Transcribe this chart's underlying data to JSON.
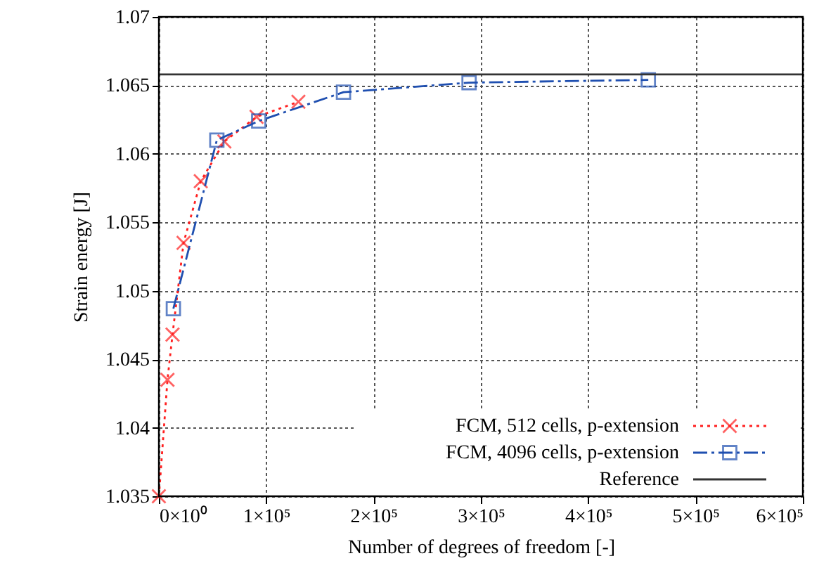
{
  "chart_data": {
    "type": "line",
    "xlabel": "Number of degrees of freedom [-]",
    "ylabel": "Strain energy [J]",
    "series": [
      {
        "name": "FCM, 512 cells, p-extension",
        "color": "#ff2020",
        "marker": "cross",
        "line_style": "dotted",
        "x": [
          0,
          8000,
          12700,
          23000,
          39000,
          61000,
          91000,
          130000
        ],
        "values": [
          1.035,
          1.0435,
          1.0468,
          1.0535,
          1.058,
          1.0609,
          1.0627,
          1.0638
        ]
      },
      {
        "name": "FCM, 4096 cells, p-extension",
        "color": "#1f4fb0",
        "marker": "square",
        "line_style": "dashed",
        "x": [
          13500,
          54000,
          93000,
          172000,
          289000,
          456000
        ],
        "values": [
          1.0487,
          1.061,
          1.0624,
          1.0645,
          1.0652,
          1.0654
        ]
      }
    ],
    "ref_lines": [
      {
        "axis": "y",
        "value": 1.0658,
        "label": "Reference",
        "color": "#333333"
      }
    ],
    "xlim": [
      0,
      600000
    ],
    "ylim": [
      1.035,
      1.07
    ],
    "xticks": [
      {
        "value": 0,
        "label": "0×10⁰"
      },
      {
        "value": 100000,
        "label": "1×10⁵"
      },
      {
        "value": 200000,
        "label": "2×10⁵"
      },
      {
        "value": 300000,
        "label": "3×10⁵"
      },
      {
        "value": 400000,
        "label": "4×10⁵"
      },
      {
        "value": 500000,
        "label": "5×10⁵"
      },
      {
        "value": 600000,
        "label": "6×10⁵"
      }
    ],
    "yticks": [
      1.035,
      1.04,
      1.045,
      1.05,
      1.055,
      1.06,
      1.065,
      1.07
    ],
    "grid": true,
    "legend": "bottom right"
  }
}
